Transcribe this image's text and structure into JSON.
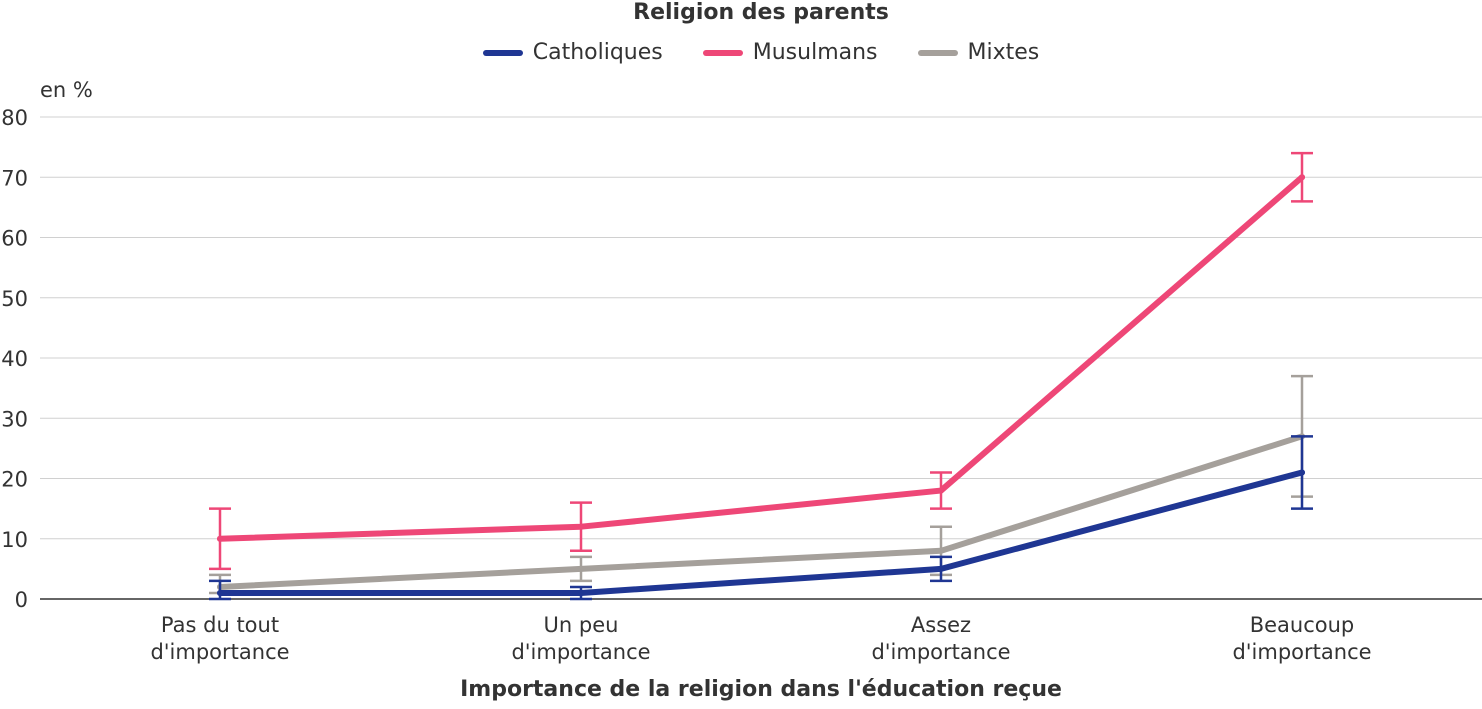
{
  "chart_data": {
    "type": "line",
    "legend_title": "Religion des parents",
    "unit_label": "en %",
    "xlabel": "Importance de la religion dans l'éducation reçue",
    "ylabel": "",
    "ylim": [
      0,
      80
    ],
    "yticks": [
      0,
      10,
      20,
      30,
      40,
      50,
      60,
      70,
      80
    ],
    "grid": true,
    "legend_position": "top-center",
    "categories": [
      [
        "Pas du tout",
        "d'importance"
      ],
      [
        "Un peu",
        "d'importance"
      ],
      [
        "Assez",
        "d'importance"
      ],
      [
        "Beaucoup",
        "d'importance"
      ]
    ],
    "series": [
      {
        "name": "Mixtes",
        "color": "#a5a09b",
        "values": [
          2,
          5,
          8,
          27
        ],
        "error_low": [
          1,
          3,
          4,
          17
        ],
        "error_high": [
          4,
          7,
          12,
          37
        ]
      },
      {
        "name": "Catholiques",
        "color": "#1f3693",
        "values": [
          1,
          1,
          5,
          21
        ],
        "error_low": [
          0,
          0,
          3,
          15
        ],
        "error_high": [
          3,
          2,
          7,
          27
        ]
      },
      {
        "name": "Musulmans",
        "color": "#ee4777",
        "values": [
          10,
          12,
          18,
          70
        ],
        "error_low": [
          5,
          8,
          15,
          66
        ],
        "error_high": [
          15,
          16,
          21,
          74
        ]
      }
    ],
    "legend_order": [
      "Catholiques",
      "Musulmans",
      "Mixtes"
    ]
  }
}
